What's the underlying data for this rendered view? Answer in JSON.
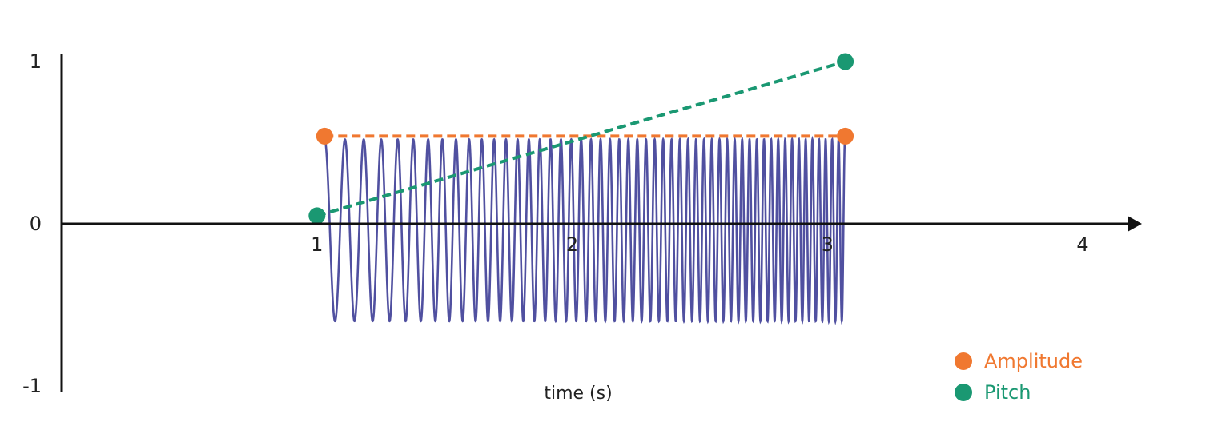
{
  "chart_data": {
    "type": "line",
    "xlabel": "time (s)",
    "ylabel": "",
    "xlim": [
      0,
      4.2
    ],
    "ylim": [
      -1,
      1
    ],
    "x_ticks": [
      "1",
      "2",
      "3",
      "4"
    ],
    "x_tick_values": [
      1,
      2,
      3,
      4
    ],
    "y_ticks": [
      "1",
      "0",
      "-1"
    ],
    "y_tick_values": [
      1,
      0,
      -1
    ],
    "grid": false,
    "legend_position": "bottom-right",
    "series": [
      {
        "name": "Amplitude",
        "style": "dashed",
        "color": "#F07830",
        "x": [
          1.03,
          3.07
        ],
        "y": [
          0.54,
          0.54
        ]
      },
      {
        "name": "Pitch",
        "style": "dashed",
        "color": "#1A9872",
        "x": [
          1.0,
          3.07
        ],
        "y": [
          0.05,
          1.0
        ]
      }
    ],
    "waveform": {
      "color": "#5050A0",
      "x_start": 1.03,
      "x_end": 3.07,
      "amplitude_top": 0.52,
      "amplitude_bottom": -0.6,
      "freq_start_hz": 12,
      "freq_end_hz": 40
    },
    "legend": [
      {
        "label": "Amplitude",
        "color": "#F07830"
      },
      {
        "label": "Pitch",
        "color": "#1A9872"
      }
    ]
  }
}
